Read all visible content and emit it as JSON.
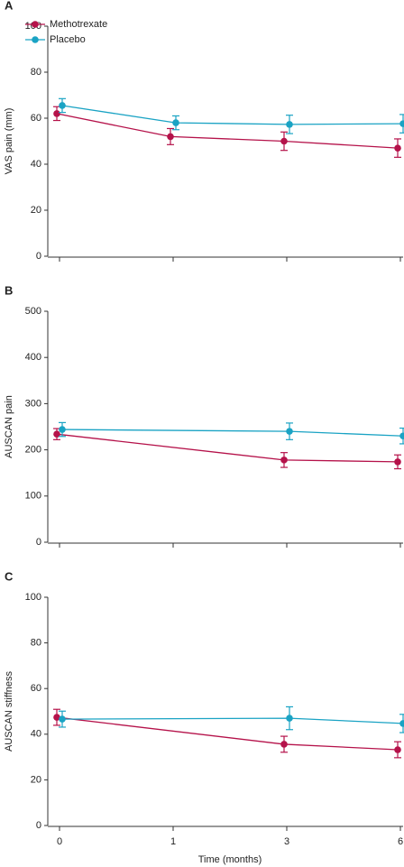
{
  "chart_data": [
    {
      "type": "line",
      "title": "A",
      "y_label": "VAS pain (mm)",
      "categories": [
        null,
        null,
        null,
        null
      ],
      "ylim": [
        0,
        100
      ],
      "yticks": [
        0,
        20,
        40,
        60,
        80,
        100
      ],
      "legend": "upper left",
      "series": [
        {
          "name": "Methotrexate",
          "color": "#b5124a",
          "values": [
            62,
            52,
            50,
            47
          ],
          "errors": [
            3,
            3.5,
            4,
            4
          ]
        },
        {
          "name": "Placebo",
          "color": "#1aa3c4",
          "values": [
            65.5,
            58,
            57.3,
            57.6
          ],
          "errors": [
            3,
            3,
            4,
            4
          ]
        }
      ]
    },
    {
      "type": "line",
      "title": "B",
      "y_label": "AUSCAN pain",
      "categories": [
        null,
        null,
        null,
        null
      ],
      "ylim": [
        0,
        500
      ],
      "yticks": [
        0,
        100,
        200,
        300,
        400,
        500
      ],
      "series": [
        {
          "color": "#b5124a",
          "values": [
            234,
            null,
            178,
            174
          ],
          "errors": [
            12,
            null,
            16,
            15
          ]
        },
        {
          "color": "#1aa3c4",
          "values": [
            244,
            null,
            240,
            230
          ],
          "errors": [
            15,
            null,
            18,
            17
          ]
        }
      ]
    },
    {
      "type": "line",
      "title": "C",
      "y_label": "AUSCAN stiffness",
      "x_label": "Time (months)",
      "categories": [
        "0",
        "1",
        "3",
        "6"
      ],
      "ylim": [
        0,
        100
      ],
      "yticks": [
        0,
        20,
        40,
        60,
        80,
        100
      ],
      "series": [
        {
          "color": "#b5124a",
          "values": [
            47.4,
            null,
            35.6,
            33.2
          ],
          "errors": [
            3.5,
            null,
            3.5,
            3.5
          ]
        },
        {
          "color": "#1aa3c4",
          "values": [
            46.6,
            null,
            47,
            44.7
          ],
          "errors": [
            3.5,
            null,
            5,
            4
          ]
        }
      ]
    }
  ]
}
